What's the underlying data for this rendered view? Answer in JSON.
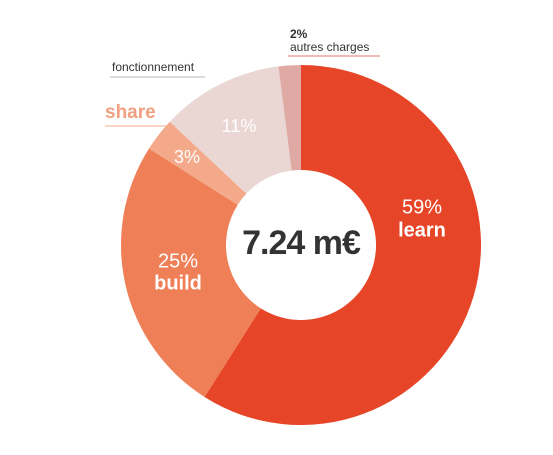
{
  "chart_data": {
    "type": "donut",
    "center_label": "7.24 m€",
    "categories": [
      "learn",
      "build",
      "share",
      "fonctionnement",
      "autres charges"
    ],
    "values": [
      59,
      25,
      3,
      11,
      2
    ],
    "value_labels": [
      "59%",
      "25%",
      "3%",
      "11%",
      "2%"
    ],
    "colors": [
      "#e64527",
      "#ef7f57",
      "#f4a98a",
      "#ead7d4",
      "#dfaaa4"
    ]
  }
}
